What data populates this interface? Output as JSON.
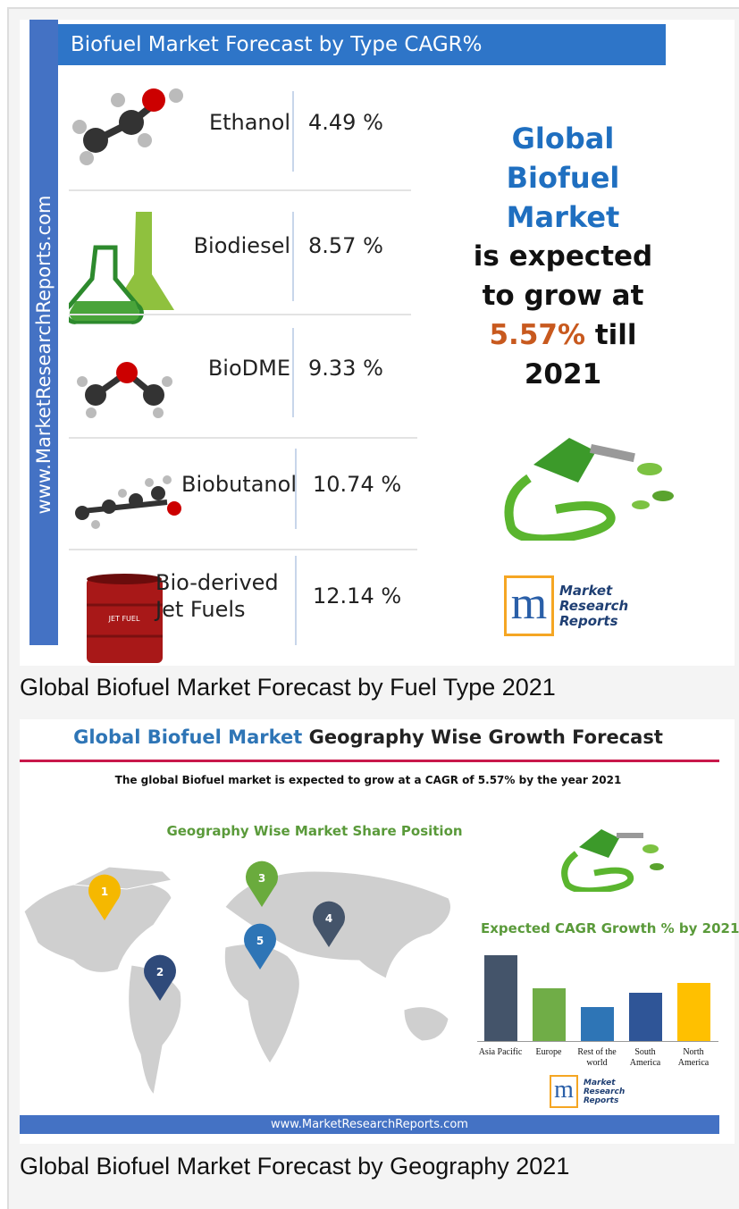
{
  "figure1": {
    "banner": "Biofuel Market Forecast by Type CAGR%",
    "side_text": "www.MarketResearchReports.com",
    "rows": [
      {
        "name": [
          "Ethanol"
        ],
        "cagr": "4.49 %"
      },
      {
        "name": [
          "Biodiesel"
        ],
        "cagr": "8.57 %"
      },
      {
        "name": [
          "BioDME"
        ],
        "cagr": "9.33 %"
      },
      {
        "name": [
          "Biobutanol"
        ],
        "cagr": "10.74 %"
      },
      {
        "name": [
          "Bio-derived",
          "Jet Fuels"
        ],
        "cagr": "12.14 %"
      }
    ],
    "headline": {
      "blue": [
        "Global",
        "Biofuel",
        "Market"
      ],
      "black": [
        "is expected",
        "to grow at"
      ],
      "rate": "5.57%",
      "till": "till",
      "year": "2021"
    },
    "logo": {
      "letter": "m",
      "words": [
        "Market",
        "Research",
        "Reports"
      ]
    },
    "drum_label": "JET FUEL"
  },
  "caption1": "Global Biofuel Market Forecast by Fuel Type 2021",
  "figure2": {
    "title_blue": "Global Biofuel Market",
    "title_dark": "Geography Wise Growth Forecast",
    "subtitle": "The global Biofuel market is expected to grow at a CAGR of 5.57% by the year 2021",
    "map_title": "Geography Wise Market Share Position",
    "pins": [
      "1",
      "2",
      "3",
      "4",
      "5"
    ],
    "chart_data": {
      "type": "bar",
      "title": "Expected CAGR Growth % by 2021",
      "categories": [
        "Asia Pacific",
        "Europe",
        "Rest of the world",
        "South America",
        "North America"
      ],
      "values": [
        96,
        59,
        38,
        54,
        65
      ],
      "colors": [
        "#44546a",
        "#70ad47",
        "#2e75b6",
        "#2f5597",
        "#ffc000"
      ]
    },
    "logo": {
      "letter": "m",
      "words": [
        "Market",
        "Research",
        "Reports"
      ]
    },
    "footer": "www.MarketResearchReports.com"
  },
  "caption2": "Global Biofuel Market Forecast by Geography 2021"
}
